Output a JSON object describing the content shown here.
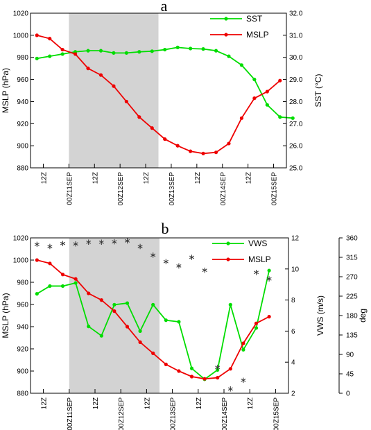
{
  "chart_data": [
    {
      "type": "line",
      "panel_label": "a",
      "x_tick_labels": [
        "12Z",
        "00Z11SEP",
        "12Z",
        "00Z12SEP",
        "12Z",
        "00Z13SEP",
        "12Z",
        "00Z14SEP",
        "12Z",
        "00Z15SEP"
      ],
      "shaded_region": {
        "from_index": 3,
        "to_index": 10
      },
      "left_axis": {
        "label": "MSLP (hPa)",
        "ylim": [
          880,
          1020
        ],
        "ticks": [
          880,
          900,
          920,
          940,
          960,
          980,
          1000,
          1020
        ]
      },
      "right_axis": {
        "label": "SST (°C)",
        "ylim": [
          25.0,
          32.0
        ],
        "ticks": [
          "25.0",
          "26.0",
          "27.0",
          "28.0",
          "29.0",
          "30.0",
          "31.0",
          "32.0"
        ]
      },
      "legend_position": "top-right",
      "series": [
        {
          "name": "SST",
          "axis": "right",
          "color": "#00dd00",
          "values": [
            29.95,
            30.05,
            30.15,
            30.25,
            30.3,
            30.3,
            30.2,
            30.2,
            30.25,
            30.28,
            30.35,
            30.45,
            30.4,
            30.38,
            30.3,
            30.05,
            29.65,
            29.0,
            27.85,
            27.3,
            27.25
          ]
        },
        {
          "name": "MSLP",
          "axis": "left",
          "color": "#ee0000",
          "values": [
            1000,
            997,
            987,
            983,
            970,
            964,
            954,
            940,
            926,
            916,
            906,
            900,
            895,
            893,
            894,
            902,
            925,
            943,
            949,
            959
          ]
        }
      ]
    },
    {
      "type": "line",
      "panel_label": "b",
      "x_tick_labels": [
        "12Z",
        "00Z11SEP",
        "12Z",
        "00Z12SEP",
        "12Z",
        "00Z13SEP",
        "12Z",
        "00Z14SEP",
        "12Z",
        "00Z15SEP"
      ],
      "shaded_region": {
        "from_index": 3,
        "to_index": 10
      },
      "left_axis": {
        "label": "MSLP (hPa)",
        "ylim": [
          880,
          1020
        ],
        "ticks": [
          880,
          900,
          920,
          940,
          960,
          980,
          1000,
          1020
        ]
      },
      "right_axis": {
        "label": "VWS (m/s)",
        "ylim": [
          2,
          12
        ],
        "ticks": [
          2,
          4,
          6,
          8,
          10,
          12
        ]
      },
      "outer_axis": {
        "label": "deg",
        "ylim": [
          0,
          360
        ],
        "ticks": [
          0,
          45,
          90,
          135,
          180,
          225,
          270,
          315,
          360
        ]
      },
      "legend_position": "top-right",
      "series": [
        {
          "name": "VWS",
          "axis": "right",
          "color": "#00dd00",
          "values": [
            8.4,
            8.9,
            8.9,
            9.1,
            6.3,
            5.7,
            7.7,
            7.8,
            6.0,
            7.7,
            6.7,
            6.6,
            3.6,
            2.9,
            3.5,
            7.7,
            4.8,
            6.2,
            9.9
          ]
        },
        {
          "name": "MSLP",
          "axis": "left",
          "color": "#ee0000",
          "values": [
            1000,
            997,
            987,
            983,
            970,
            964,
            954,
            940,
            926,
            916,
            906,
            900,
            895,
            893,
            894,
            902,
            925,
            943,
            949
          ]
        },
        {
          "name": "",
          "axis": "outer",
          "marker": "asterisk",
          "color": "#333333",
          "values": [
            345,
            340,
            347,
            346,
            350,
            350,
            351,
            353,
            340,
            320,
            305,
            295,
            315,
            285,
            60,
            10,
            30,
            280,
            265
          ]
        }
      ]
    }
  ]
}
